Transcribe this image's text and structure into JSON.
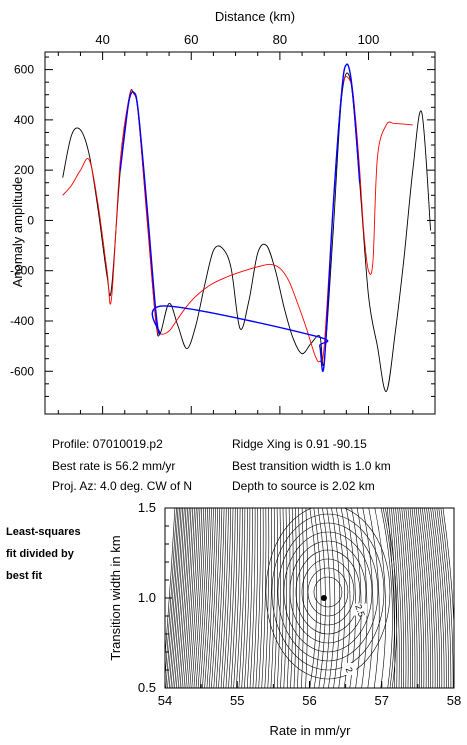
{
  "info": {
    "profile": "Profile: 07010019.p2",
    "rate": "Best rate is 56.2 mm/yr",
    "azimuth": "Proj. Az: 4.0 deg. CW of N",
    "ridge": "Ridge Xing is 0.91 -90.15",
    "transition": "Best transition width is 1.0 km",
    "depth": "Depth to source is   2.02 km"
  },
  "side_note": {
    "line1": "Least-squares",
    "line2": "fit divided by",
    "line3": "best fit"
  },
  "chart_data": [
    {
      "type": "line",
      "xlabel": "Distance (km)",
      "ylabel": "Anomaly amplitude",
      "xlim": [
        27,
        115
      ],
      "ylim": [
        -770,
        670
      ],
      "xticks": [
        40,
        60,
        80,
        100
      ],
      "yticks": [
        -600,
        -400,
        -200,
        0,
        200,
        400,
        600
      ],
      "colors": {
        "observed": "#000000",
        "model": "#ff0000",
        "fit": "#0000ff"
      },
      "series": [
        {
          "key": "observed",
          "x": [
            31,
            33,
            35,
            37,
            39,
            41,
            42,
            44,
            46,
            47,
            48,
            50,
            52,
            53,
            55,
            57,
            59,
            61,
            63,
            65,
            67,
            69,
            71,
            73,
            75,
            77,
            79,
            81,
            83,
            85,
            87,
            89,
            90,
            92,
            94,
            96,
            98,
            100,
            102,
            104,
            106,
            108,
            110,
            112,
            114
          ],
          "y": [
            170,
            340,
            360,
            260,
            40,
            -220,
            -270,
            200,
            490,
            505,
            430,
            20,
            -400,
            -450,
            -330,
            -420,
            -510,
            -420,
            -260,
            -120,
            -110,
            -190,
            -430,
            -320,
            -130,
            -100,
            -200,
            -350,
            -470,
            -530,
            -490,
            -460,
            -560,
            -50,
            500,
            550,
            150,
            -300,
            -500,
            -680,
            -450,
            -150,
            200,
            430,
            -40
          ]
        },
        {
          "key": "model",
          "x": [
            31,
            33,
            35,
            37,
            39,
            41,
            42,
            44,
            46,
            47,
            48,
            50,
            52,
            53,
            55,
            57,
            60,
            64,
            68,
            72,
            76,
            78,
            80,
            82,
            84,
            86,
            88,
            89,
            90,
            92,
            94,
            96,
            97,
            98,
            99,
            100,
            101,
            102,
            104,
            106,
            110
          ],
          "y": [
            100,
            140,
            200,
            240,
            60,
            -200,
            -310,
            240,
            490,
            505,
            430,
            10,
            -400,
            -450,
            -440,
            -390,
            -320,
            -260,
            -225,
            -200,
            -180,
            -175,
            -190,
            -240,
            -330,
            -430,
            -540,
            -560,
            -500,
            50,
            520,
            550,
            420,
            200,
            -60,
            -200,
            -160,
            250,
            380,
            385,
            380
          ]
        },
        {
          "key": "fit",
          "x": [
            44,
            45,
            46,
            47,
            48,
            50,
            52,
            53,
            54,
            88,
            89,
            90,
            92,
            94,
            95,
            96,
            97,
            98
          ],
          "y": [
            200,
            350,
            480,
            510,
            440,
            60,
            -360,
            -450,
            -340,
            -460,
            -500,
            -570,
            50,
            520,
            620,
            570,
            390,
            150
          ]
        }
      ]
    },
    {
      "type": "contour",
      "title": "",
      "xlabel": "Rate in mm/yr",
      "ylabel": "Transition width in km",
      "xlim": [
        54,
        58
      ],
      "ylim": [
        0.5,
        1.5
      ],
      "xticks": [
        54,
        55,
        56,
        57,
        58
      ],
      "yticks": [
        0.5,
        1.0,
        1.5
      ],
      "best_fit": {
        "rate": 56.2,
        "transition_width": 1.0
      },
      "contour_labels": [
        {
          "text": "2.5",
          "rate": 56.7,
          "width": 0.93
        },
        {
          "text": "2",
          "rate": 56.55,
          "width": 0.6
        }
      ]
    }
  ]
}
